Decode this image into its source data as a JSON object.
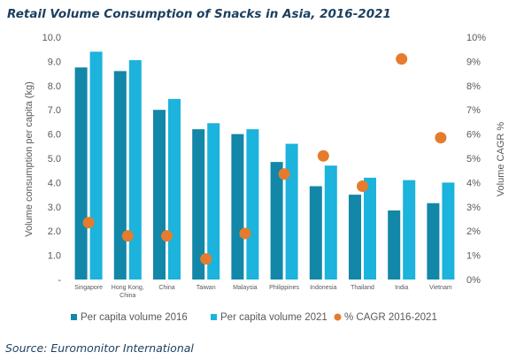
{
  "chart_data": {
    "type": "bar",
    "title": "Retail Volume Consumption of Snacks in Asia, 2016-2021",
    "ylabel": "Volume consumption per capita (kg)",
    "y2label": "Volume CAGR %",
    "ylim": [
      0,
      10
    ],
    "y2lim": [
      0,
      10
    ],
    "yticks": [
      "10.0",
      "9.0",
      "8.0",
      "7.0",
      "6.0",
      "5.0",
      "4.0",
      "3.0",
      "2.0",
      "1.0",
      "-"
    ],
    "y2ticks": [
      "10%",
      "9%",
      "8%",
      "7%",
      "6%",
      "5%",
      "4%",
      "3%",
      "2%",
      "1%",
      "0%"
    ],
    "categories": [
      [
        "Singapore"
      ],
      [
        "Hong Kong,",
        "China"
      ],
      [
        "China"
      ],
      [
        "Taiwan"
      ],
      [
        "Malaysia"
      ],
      [
        "Philippines"
      ],
      [
        "Indonesia"
      ],
      [
        "Thailand"
      ],
      [
        "India"
      ],
      [
        "Vietnam"
      ]
    ],
    "series": [
      {
        "name": "Per capita volume 2016",
        "kind": "bar",
        "axis": "left",
        "values": [
          8.75,
          8.6,
          7.0,
          6.2,
          6.0,
          4.85,
          3.85,
          3.5,
          2.85,
          3.15
        ]
      },
      {
        "name": "Per capita volume 2021",
        "kind": "bar",
        "axis": "left",
        "values": [
          9.4,
          9.05,
          7.45,
          6.45,
          6.2,
          5.6,
          4.7,
          4.2,
          4.1,
          4.0
        ]
      },
      {
        "name": "% CAGR 2016-2021",
        "kind": "scatter",
        "axis": "right",
        "values": [
          2.35,
          1.8,
          1.8,
          0.85,
          1.9,
          4.35,
          5.1,
          3.85,
          9.1,
          5.85
        ]
      }
    ],
    "legend_position": "bottom",
    "grid": false
  },
  "colors": {
    "bar_2016": "#1287a8",
    "bar_2021": "#1cb3dc",
    "cagr_marker": "#e57c2d",
    "axis_text": "#595959"
  },
  "source": "Source: Euromonitor International"
}
